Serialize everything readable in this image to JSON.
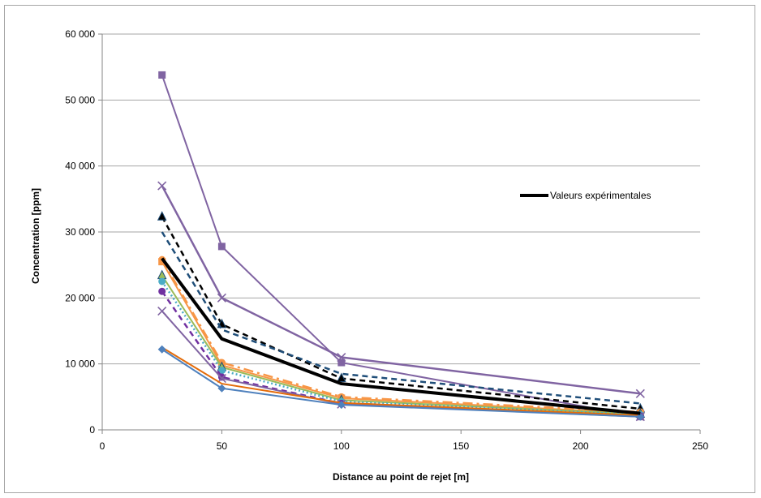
{
  "chart_data": {
    "type": "line",
    "xlabel": "Distance au point de rejet [m]",
    "ylabel": "Concentration [ppm]",
    "xlim": [
      0,
      250
    ],
    "ylim": [
      0,
      60000
    ],
    "x_ticks": [
      0,
      50,
      100,
      150,
      200,
      250
    ],
    "x_tick_labels": [
      "0",
      "50",
      "100",
      "150",
      "200",
      "250"
    ],
    "y_ticks": [
      0,
      10000,
      20000,
      30000,
      40000,
      50000,
      60000
    ],
    "y_tick_labels": [
      "0",
      "10 000",
      "20 000",
      "30 000",
      "40 000",
      "50 000",
      "60 000"
    ],
    "grid": "horizontal",
    "legend_position": "right",
    "legend": [
      {
        "label": "Valeurs expérimentales",
        "color": "#000000"
      }
    ],
    "x": [
      25,
      50,
      100,
      225
    ],
    "series": [
      {
        "name": "Valeurs expérimentales",
        "values": [
          26000,
          13800,
          7000,
          2500
        ],
        "color": "#000000",
        "dash": "",
        "width": 4,
        "marker": "none"
      },
      {
        "values": [
          53800,
          27800,
          10200,
          2000
        ],
        "color": "#8064a2",
        "dash": "",
        "width": 2,
        "marker": "square"
      },
      {
        "values": [
          37000,
          20000,
          11000,
          5500
        ],
        "color": "#8064a2",
        "dash": "",
        "width": 2.5,
        "marker": "x"
      },
      {
        "values": [
          32300,
          16000,
          7800,
          3200
        ],
        "color": "#000000",
        "dash": "7,5",
        "width": 2.5,
        "marker": "triangle"
      },
      {
        "values": [
          30000,
          15200,
          8500,
          4000
        ],
        "color": "#1f4e79",
        "dash": "7,5",
        "width": 2.5,
        "marker": "none"
      },
      {
        "values": [
          25800,
          10200,
          5000,
          2700
        ],
        "color": "#f79646",
        "dash": "12,5,3,5",
        "width": 2.5,
        "marker": "circle"
      },
      {
        "values": [
          25500,
          9800,
          4800,
          2500
        ],
        "color": "#f79646",
        "dash": "",
        "width": 2,
        "marker": "square"
      },
      {
        "values": [
          23400,
          9500,
          4500,
          2400
        ],
        "color": "#9bbb59",
        "dash": "",
        "width": 2,
        "marker": "triangle"
      },
      {
        "values": [
          22500,
          9000,
          4300,
          2300
        ],
        "color": "#4bacc6",
        "dash": "2,3",
        "width": 2.5,
        "marker": "circle"
      },
      {
        "values": [
          21000,
          8000,
          4000,
          2100
        ],
        "color": "#7030a0",
        "dash": "7,5",
        "width": 2.5,
        "marker": "circle"
      },
      {
        "values": [
          18000,
          7800,
          3900,
          2000
        ],
        "color": "#8064a2",
        "dash": "",
        "width": 2,
        "marker": "x"
      },
      {
        "values": [
          12500,
          7000,
          4100,
          2200
        ],
        "color": "#e46c0a",
        "dash": "",
        "width": 2,
        "marker": "none"
      },
      {
        "values": [
          12200,
          6300,
          3800,
          2000
        ],
        "color": "#4f81bd",
        "dash": "",
        "width": 2,
        "marker": "diamond"
      }
    ]
  }
}
